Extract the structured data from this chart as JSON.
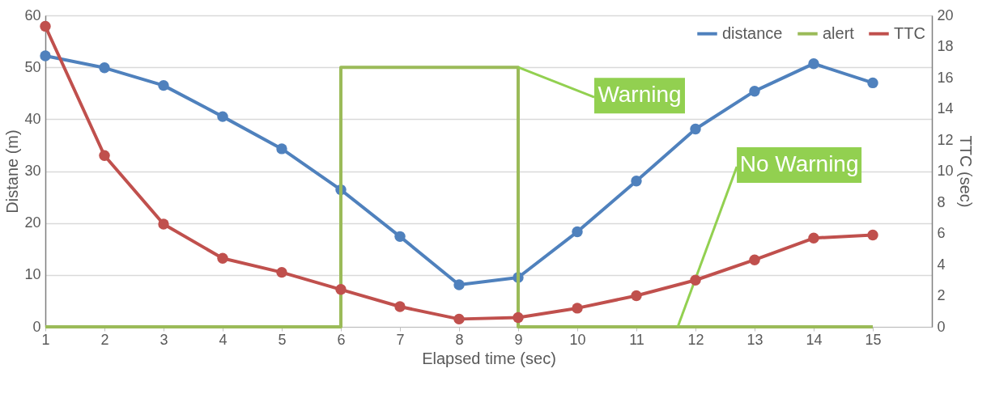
{
  "chart_data": {
    "type": "line",
    "xlabel": "Elapsed time (sec)",
    "ylabel": "Distane (m)",
    "y2label": "TTC (sec)",
    "x": [
      1,
      2,
      3,
      4,
      5,
      6,
      7,
      8,
      9,
      10,
      11,
      12,
      13,
      14,
      15
    ],
    "xlim": [
      1,
      16
    ],
    "xticks": [
      1,
      2,
      3,
      4,
      5,
      6,
      7,
      8,
      9,
      10,
      11,
      12,
      13,
      14,
      15
    ],
    "ylim": [
      0,
      60
    ],
    "yticks": [
      0,
      10,
      20,
      30,
      40,
      50,
      60
    ],
    "y2lim": [
      0,
      20
    ],
    "y2ticks": [
      0,
      2,
      4,
      6,
      8,
      10,
      12,
      14,
      16,
      18,
      20
    ],
    "grid": "y",
    "legend": "top right",
    "marker": "circle",
    "line_style": "solid",
    "series": [
      {
        "name": "distance",
        "color": "#4f81bd",
        "values": [
          52.2,
          49.9,
          46.5,
          40.5,
          34.3,
          26.4,
          17.4,
          8.1,
          9.5,
          18.3,
          28.1,
          38.1,
          45.4,
          50.7,
          47.0
        ]
      },
      {
        "name": "alert",
        "color": "#9bbb59",
        "marker": "none",
        "x": [
          1,
          2,
          3,
          4,
          5,
          6,
          6,
          7,
          8,
          9,
          9,
          10,
          11,
          12,
          13,
          14,
          15
        ],
        "values": [
          0,
          0,
          0,
          0,
          0,
          0,
          50,
          50,
          50,
          50,
          0,
          0,
          0,
          0,
          0,
          0,
          0
        ]
      },
      {
        "name": "TTC",
        "color": "#c0504d",
        "axis": "y2",
        "values": [
          19.3,
          11.0,
          6.6,
          4.4,
          3.5,
          2.4,
          1.3,
          0.5,
          0.6,
          1.2,
          2.0,
          3.0,
          4.3,
          5.7,
          5.9
        ]
      }
    ],
    "annotations": [
      {
        "text": "Warning",
        "x": 9,
        "y": 50
      },
      {
        "text": "No Warning",
        "x": 11.7,
        "y": 0
      }
    ]
  }
}
